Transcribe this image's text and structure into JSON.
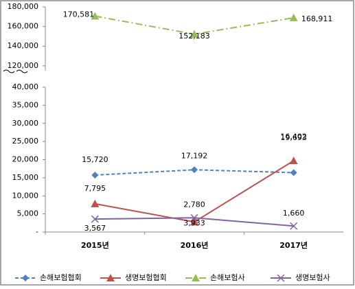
{
  "chart_data": {
    "type": "line",
    "categories": [
      "2015년",
      "2016년",
      "2017년"
    ],
    "ylim": [
      0,
      40000
    ],
    "yticks": [
      {
        "value": 0,
        "label": "-"
      },
      {
        "value": 5000,
        "label": "5,000"
      },
      {
        "value": 10000,
        "label": "10,000"
      },
      {
        "value": 15000,
        "label": "15,000"
      },
      {
        "value": 20000,
        "label": "20,000"
      },
      {
        "value": 25000,
        "label": "25,000"
      },
      {
        "value": 30000,
        "label": "30,000"
      },
      {
        "value": 35000,
        "label": "35,000"
      },
      {
        "value": 40000,
        "label": "40,000"
      }
    ],
    "y2lim": [
      115000,
      180000
    ],
    "y2ticks": [
      {
        "value": 120000,
        "label": "120,000"
      },
      {
        "value": 140000,
        "label": "140,000"
      },
      {
        "value": 160000,
        "label": "160,000"
      },
      {
        "value": 180000,
        "label": "180,000"
      }
    ],
    "series": [
      {
        "name": "손해보험협회",
        "color": "#4f81bd",
        "values": [
          15720,
          17192,
          16402
        ],
        "value_labels": [
          "15,720",
          "17,192",
          "16,402"
        ]
      },
      {
        "name": "생명보험협회",
        "color": "#c0504d",
        "values": [
          7795,
          2780,
          19693
        ],
        "value_labels": [
          "7,795",
          "2,780",
          "19,693"
        ]
      },
      {
        "name": "손해보험사",
        "color": "#9bbb59",
        "axis": "y2",
        "values": [
          170581,
          152183,
          168911
        ],
        "value_labels": [
          "170,581",
          "152,183",
          "168,911"
        ]
      },
      {
        "name": "생명보험사",
        "color": "#8064a2",
        "values": [
          3567,
          3933,
          1660
        ],
        "value_labels": [
          "3,567",
          "3,933",
          "1,660"
        ]
      }
    ]
  }
}
